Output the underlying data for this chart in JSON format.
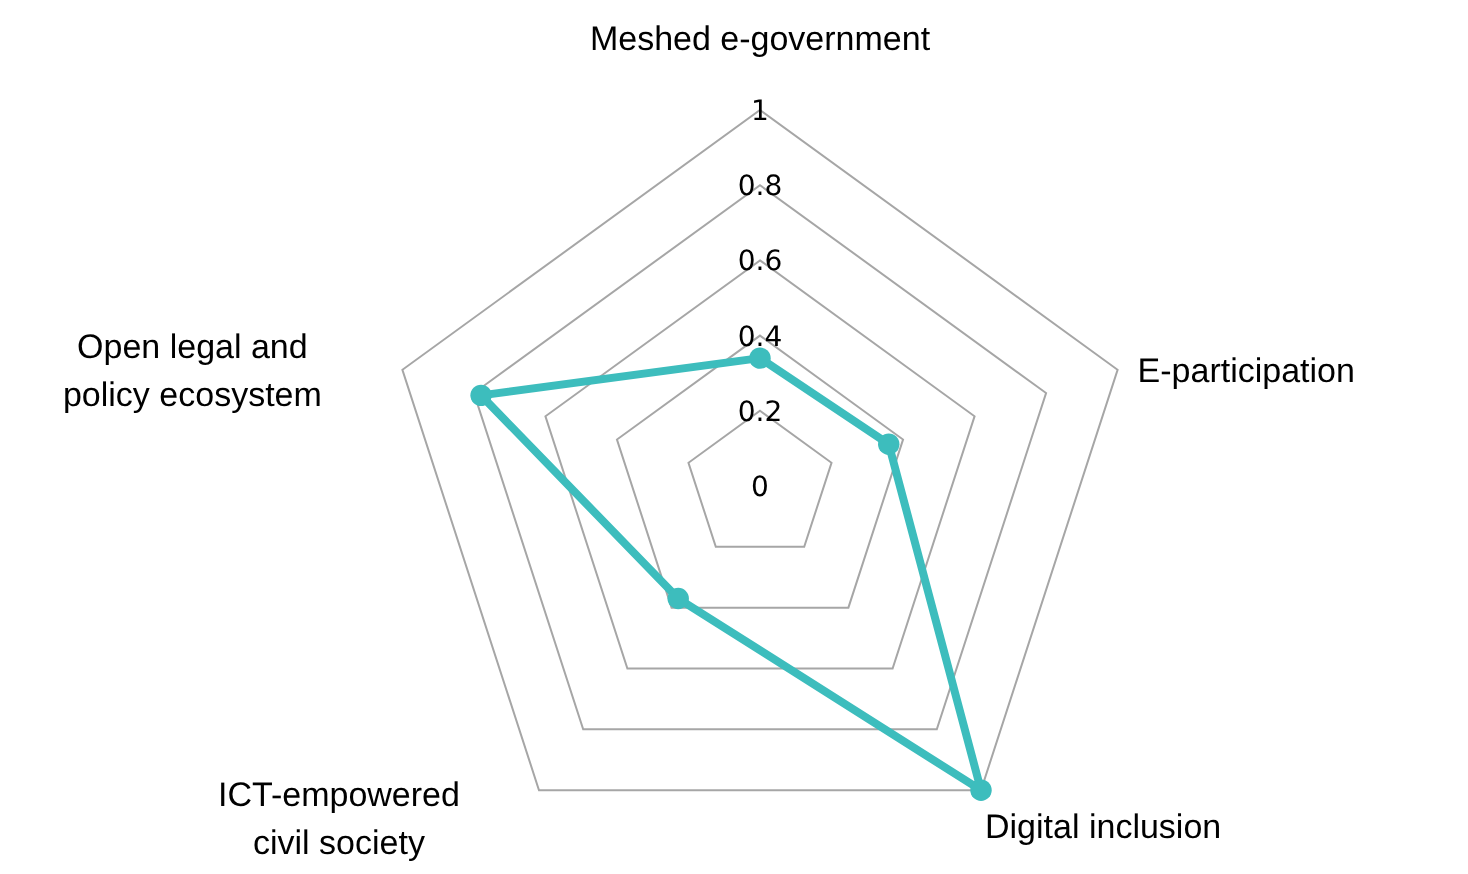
{
  "chart_data": {
    "type": "radar",
    "categories": [
      "Meshed e-government",
      "E-participation",
      "Digital inclusion",
      "ICT-empowered civil society",
      "Open legal and policy ecosystem"
    ],
    "series": [
      {
        "color": "#3dbdbd",
        "values": [
          0.34,
          0.36,
          1.0,
          0.37,
          0.78
        ]
      }
    ],
    "ylim": [
      0,
      1
    ],
    "yticks": [
      0,
      0.2,
      0.4,
      0.6,
      0.8,
      1
    ],
    "grid": true,
    "marker": "circle"
  }
}
